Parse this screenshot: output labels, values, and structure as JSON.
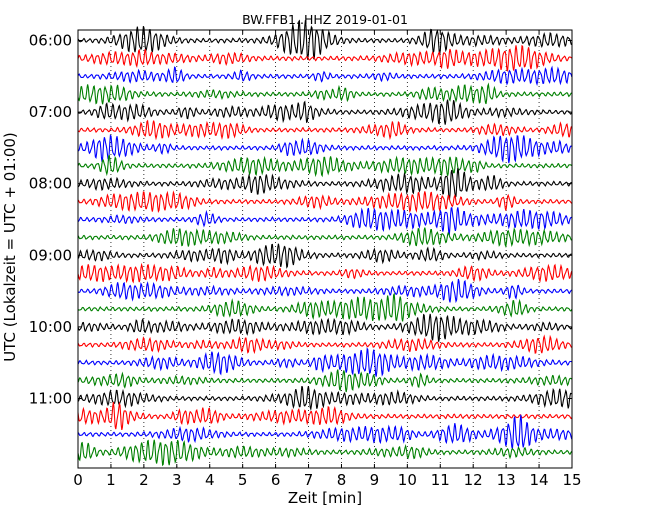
{
  "chart_data": {
    "type": "line",
    "title": "BW.FFB1..HHZ 2019-01-01",
    "xlabel": "Zeit  [min]",
    "ylabel": "UTC (Lokalzeit = UTC + 01:00)",
    "xlim": [
      0,
      15
    ],
    "x_ticks": [
      "0",
      "1",
      "2",
      "3",
      "4",
      "5",
      "6",
      "7",
      "8",
      "9",
      "10",
      "11",
      "12",
      "13",
      "14",
      "15"
    ],
    "y_tick_labels": [
      "06:00",
      "07:00",
      "08:00",
      "09:00",
      "10:00",
      "11:00"
    ],
    "rows": [
      "06:00",
      "06:15",
      "06:30",
      "06:45",
      "07:00",
      "07:15",
      "07:30",
      "07:45",
      "08:00",
      "08:15",
      "08:30",
      "08:45",
      "09:00",
      "09:15",
      "09:30",
      "09:45",
      "10:00",
      "10:15",
      "10:30",
      "10:45",
      "11:00",
      "11:15",
      "11:30",
      "11:45"
    ],
    "row_colors": [
      "#000000",
      "#ff0000",
      "#0000ff",
      "#008000"
    ],
    "grid": "vertical-dotted"
  }
}
